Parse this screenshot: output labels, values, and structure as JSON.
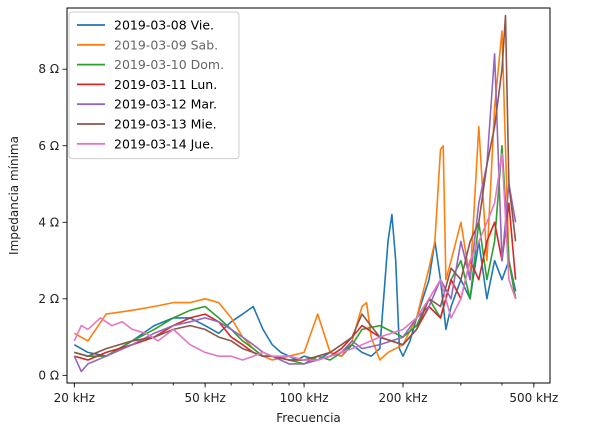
{
  "chart_data": {
    "type": "line",
    "title": "",
    "xlabel": "Frecuencia",
    "ylabel": "Impedancia mínima",
    "xscale": "log",
    "xlim": [
      19000,
      560000
    ],
    "ylim": [
      -0.2,
      9.6
    ],
    "x_ticks": [
      {
        "value": 20000,
        "label": "20 kHz"
      },
      {
        "value": 50000,
        "label": "50 kHz"
      },
      {
        "value": 100000,
        "label": "100 kHz"
      },
      {
        "value": 200000,
        "label": "200 kHz"
      },
      {
        "value": 500000,
        "label": "500 kHz"
      }
    ],
    "y_ticks": [
      {
        "value": 0,
        "label": "0 Ω"
      },
      {
        "value": 2,
        "label": "2 Ω"
      },
      {
        "value": 4,
        "label": "4 Ω"
      },
      {
        "value": 6,
        "label": "6 Ω"
      },
      {
        "value": 8,
        "label": "8 Ω"
      }
    ],
    "grid": false,
    "legend_position": "top-left",
    "series": [
      {
        "name": "2019-03-08 Vie.",
        "color": "#1f77b4",
        "label_color": "#000000",
        "x": [
          20000,
          22000,
          25000,
          30000,
          35000,
          40000,
          45000,
          50000,
          55000,
          60000,
          65000,
          70000,
          75000,
          80000,
          85000,
          90000,
          95000,
          100000,
          110000,
          120000,
          130000,
          140000,
          150000,
          160000,
          170000,
          180000,
          185000,
          190000,
          195000,
          200000,
          210000,
          220000,
          240000,
          250000,
          260000,
          270000,
          280000,
          300000,
          320000,
          340000,
          360000,
          380000,
          400000,
          420000,
          440000
        ],
        "y": [
          0.8,
          0.6,
          0.5,
          0.9,
          1.3,
          1.5,
          1.5,
          1.3,
          1.1,
          1.4,
          1.6,
          1.8,
          1.2,
          0.8,
          0.6,
          0.5,
          0.4,
          0.5,
          0.4,
          0.6,
          0.5,
          0.8,
          0.6,
          0.5,
          0.7,
          3.5,
          4.2,
          3.0,
          0.7,
          0.5,
          0.9,
          1.5,
          2.5,
          3.5,
          2.5,
          1.2,
          1.8,
          2.5,
          2.0,
          3.5,
          2.0,
          3.0,
          2.5,
          3.0,
          2.2
        ]
      },
      {
        "name": "2019-03-09 Sab.",
        "color": "#ff7f0e",
        "label_color": "#666666",
        "x": [
          20000,
          22000,
          25000,
          30000,
          35000,
          40000,
          45000,
          50000,
          55000,
          60000,
          65000,
          70000,
          75000,
          80000,
          90000,
          100000,
          110000,
          120000,
          130000,
          140000,
          150000,
          155000,
          160000,
          170000,
          180000,
          200000,
          220000,
          240000,
          250000,
          260000,
          265000,
          270000,
          280000,
          300000,
          320000,
          340000,
          360000,
          380000,
          400000,
          420000,
          440000
        ],
        "y": [
          1.1,
          0.9,
          1.6,
          1.7,
          1.8,
          1.9,
          1.9,
          2.0,
          1.9,
          1.5,
          1.0,
          0.7,
          0.5,
          0.4,
          0.5,
          0.6,
          1.6,
          0.6,
          0.5,
          0.9,
          1.8,
          1.9,
          1.0,
          0.4,
          0.6,
          0.8,
          1.5,
          2.8,
          3.5,
          5.9,
          6.0,
          2.5,
          3.0,
          4.0,
          2.5,
          6.5,
          3.0,
          7.0,
          9.0,
          3.0,
          2.0
        ]
      },
      {
        "name": "2019-03-10 Dom.",
        "color": "#2ca02c",
        "label_color": "#666666",
        "x": [
          20000,
          22000,
          25000,
          30000,
          35000,
          40000,
          45000,
          50000,
          55000,
          60000,
          65000,
          70000,
          75000,
          80000,
          90000,
          100000,
          110000,
          120000,
          130000,
          140000,
          150000,
          170000,
          200000,
          220000,
          240000,
          260000,
          280000,
          300000,
          320000,
          340000,
          360000,
          380000,
          400000,
          420000,
          440000
        ],
        "y": [
          0.6,
          0.5,
          0.5,
          0.9,
          1.2,
          1.5,
          1.7,
          1.8,
          1.5,
          1.2,
          0.9,
          0.7,
          0.5,
          0.5,
          0.4,
          0.3,
          0.5,
          0.4,
          0.6,
          0.8,
          1.2,
          1.3,
          1.0,
          1.3,
          2.0,
          1.5,
          2.5,
          3.0,
          2.0,
          4.0,
          2.5,
          3.5,
          6.0,
          3.0,
          2.0
        ]
      },
      {
        "name": "2019-03-11 Lun.",
        "color": "#d62728",
        "label_color": "#000000",
        "x": [
          20000,
          22000,
          25000,
          30000,
          35000,
          40000,
          45000,
          50000,
          55000,
          60000,
          65000,
          70000,
          75000,
          80000,
          90000,
          100000,
          110000,
          120000,
          130000,
          140000,
          150000,
          170000,
          200000,
          220000,
          240000,
          260000,
          280000,
          300000,
          320000,
          340000,
          360000,
          380000,
          400000,
          420000,
          440000
        ],
        "y": [
          0.5,
          0.4,
          0.6,
          0.8,
          1.0,
          1.3,
          1.5,
          1.6,
          1.4,
          1.0,
          0.8,
          0.6,
          0.5,
          0.5,
          0.4,
          0.4,
          0.4,
          0.5,
          0.7,
          1.0,
          1.3,
          1.0,
          0.8,
          1.2,
          1.8,
          1.5,
          2.5,
          2.0,
          3.0,
          2.5,
          3.5,
          4.0,
          3.0,
          4.5,
          2.5
        ]
      },
      {
        "name": "2019-03-12 Mar.",
        "color": "#9467bd",
        "label_color": "#000000",
        "x": [
          20000,
          21000,
          22000,
          25000,
          30000,
          35000,
          40000,
          45000,
          50000,
          55000,
          60000,
          65000,
          70000,
          75000,
          80000,
          90000,
          100000,
          110000,
          120000,
          130000,
          140000,
          150000,
          170000,
          200000,
          220000,
          240000,
          260000,
          280000,
          300000,
          320000,
          340000,
          360000,
          380000,
          400000,
          420000,
          440000
        ],
        "y": [
          0.5,
          0.1,
          0.3,
          0.5,
          0.8,
          1.1,
          1.3,
          1.4,
          1.5,
          1.4,
          1.2,
          1.0,
          0.8,
          0.6,
          0.5,
          0.3,
          0.3,
          0.4,
          0.5,
          0.6,
          0.9,
          0.7,
          0.8,
          1.0,
          1.5,
          1.8,
          2.5,
          2.0,
          3.5,
          2.5,
          4.5,
          5.5,
          8.4,
          3.0,
          5.0,
          4.0
        ]
      },
      {
        "name": "2019-03-13 Mie.",
        "color": "#8c564b",
        "label_color": "#000000",
        "x": [
          20000,
          22000,
          25000,
          30000,
          35000,
          40000,
          45000,
          50000,
          55000,
          60000,
          65000,
          70000,
          75000,
          80000,
          90000,
          100000,
          110000,
          120000,
          130000,
          140000,
          150000,
          170000,
          200000,
          220000,
          240000,
          260000,
          280000,
          300000,
          320000,
          340000,
          360000,
          380000,
          400000,
          410000,
          420000,
          440000
        ],
        "y": [
          0.6,
          0.5,
          0.7,
          0.9,
          1.0,
          1.2,
          1.3,
          1.2,
          1.0,
          0.9,
          0.7,
          0.6,
          0.5,
          0.5,
          0.4,
          0.4,
          0.5,
          0.6,
          0.8,
          1.0,
          1.6,
          1.0,
          0.8,
          1.2,
          2.0,
          1.8,
          2.8,
          2.5,
          3.5,
          4.0,
          5.5,
          6.5,
          8.0,
          9.4,
          5.0,
          3.5
        ]
      },
      {
        "name": "2019-03-14 Jue.",
        "color": "#e377c2",
        "label_color": "#000000",
        "x": [
          20000,
          21000,
          22000,
          24000,
          26000,
          28000,
          30000,
          33000,
          36000,
          40000,
          45000,
          50000,
          55000,
          60000,
          65000,
          70000,
          75000,
          80000,
          90000,
          100000,
          110000,
          120000,
          130000,
          140000,
          150000,
          170000,
          200000,
          220000,
          240000,
          260000,
          280000,
          300000,
          320000,
          340000,
          360000,
          380000,
          400000,
          420000,
          440000
        ],
        "y": [
          0.9,
          1.3,
          1.2,
          1.5,
          1.3,
          1.4,
          1.2,
          1.1,
          0.9,
          1.2,
          0.8,
          0.6,
          0.5,
          0.5,
          0.4,
          0.5,
          0.6,
          0.5,
          0.5,
          0.4,
          0.4,
          0.5,
          0.6,
          0.7,
          0.8,
          1.0,
          1.2,
          1.5,
          2.0,
          2.5,
          1.5,
          2.0,
          3.0,
          3.5,
          4.0,
          4.5,
          5.8,
          2.5,
          2.0
        ]
      }
    ]
  }
}
